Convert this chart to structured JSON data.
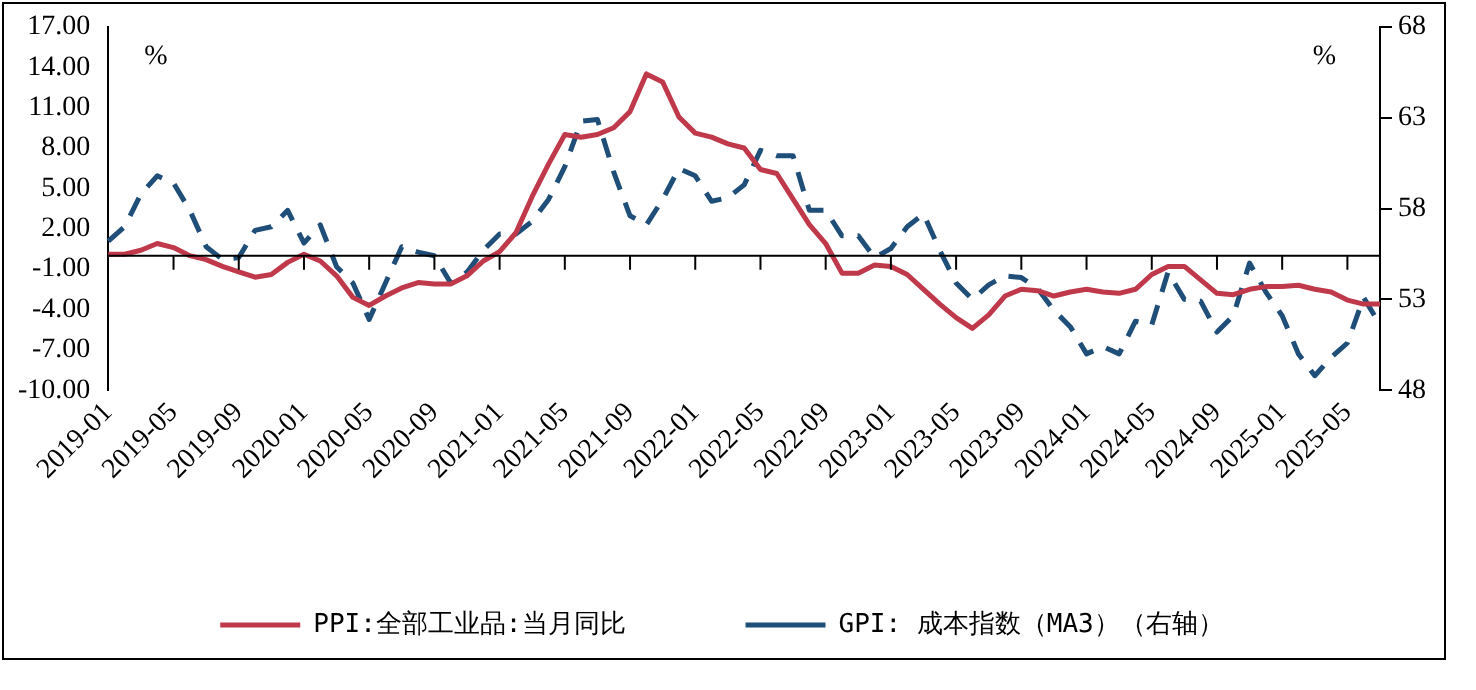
{
  "chart_data": {
    "type": "line",
    "categories": [
      "2019-01",
      null,
      null,
      null,
      "2019-05",
      null,
      null,
      null,
      "2019-09",
      null,
      null,
      null,
      "2020-01",
      null,
      null,
      null,
      "2020-05",
      null,
      null,
      null,
      "2020-09",
      null,
      null,
      null,
      "2021-01",
      null,
      null,
      null,
      "2021-05",
      null,
      null,
      null,
      "2021-09",
      null,
      null,
      null,
      "2022-01",
      null,
      null,
      null,
      "2022-05",
      null,
      null,
      null,
      "2022-09",
      null,
      null,
      null,
      "2023-01",
      null,
      null,
      null,
      "2023-05",
      null,
      null,
      null,
      "2023-09",
      null,
      null,
      null,
      "2024-01",
      null,
      null,
      null,
      "2024-05",
      null,
      null,
      null,
      "2024-09",
      null,
      null,
      null,
      "2025-01",
      null,
      null,
      null,
      "2025-05",
      null,
      null
    ],
    "series": [
      {
        "name": "PPI:全部工业品:当月同比",
        "color": "#c0394b",
        "line_style": "solid",
        "values": [
          0.1,
          0.1,
          0.4,
          0.9,
          0.6,
          0.0,
          -0.3,
          -0.8,
          -1.2,
          -1.6,
          -1.4,
          -0.5,
          0.1,
          -0.4,
          -1.5,
          -3.1,
          -3.7,
          -3.0,
          -2.4,
          -2.0,
          -2.1,
          -2.1,
          -1.5,
          -0.4,
          0.3,
          1.7,
          4.4,
          6.8,
          9.0,
          8.8,
          9.0,
          9.5,
          10.7,
          13.5,
          12.9,
          10.3,
          9.1,
          8.8,
          8.3,
          8.0,
          6.4,
          6.1,
          4.2,
          2.3,
          0.9,
          -1.3,
          -1.3,
          -0.7,
          -0.8,
          -1.4,
          -2.5,
          -3.6,
          -4.6,
          -5.4,
          -4.4,
          -3.0,
          -2.5,
          -2.6,
          -3.0,
          -2.7,
          -2.5,
          -2.7,
          -2.8,
          -2.5,
          -1.4,
          -0.8,
          -0.8,
          -1.8,
          -2.8,
          -2.9,
          -2.5,
          -2.3,
          -2.3,
          -2.2,
          -2.5,
          -2.7,
          -3.3,
          -3.6,
          -3.6
        ]
      },
      {
        "name": "GPI: 成本指数（MA3）（右轴）",
        "color": "#1f4e79",
        "line_style": "dashed",
        "axis": "y2",
        "values": [
          56.2,
          57.0,
          58.8,
          59.8,
          59.4,
          57.9,
          55.9,
          55.2,
          55.3,
          56.8,
          57.0,
          57.9,
          56.1,
          57.1,
          54.8,
          53.9,
          51.9,
          53.9,
          55.9,
          55.6,
          55.4,
          53.9,
          54.5,
          55.7,
          56.6,
          56.6,
          57.3,
          58.5,
          60.3,
          62.8,
          62.9,
          60.0,
          57.6,
          57.1,
          58.5,
          60.2,
          59.8,
          58.4,
          58.6,
          59.3,
          61.2,
          60.9,
          60.9,
          57.9,
          57.9,
          56.5,
          56.5,
          55.3,
          55.8,
          57.0,
          57.7,
          55.7,
          53.9,
          53.0,
          53.8,
          54.3,
          54.2,
          53.6,
          52.4,
          51.5,
          50.0,
          50.4,
          50.0,
          51.8,
          51.6,
          54.5,
          53.0,
          52.9,
          51.2,
          52.1,
          55.0,
          53.4,
          52.1,
          50.0,
          48.8,
          49.8,
          50.6,
          53.1,
          51.6
        ]
      }
    ],
    "ylim": [
      -10,
      17
    ],
    "yticks": [
      {
        "value": -10,
        "label": "-10.00"
      },
      {
        "value": -7,
        "label": "-7.00"
      },
      {
        "value": -4,
        "label": "-4.00"
      },
      {
        "value": -1,
        "label": "-1.00"
      },
      {
        "value": 2,
        "label": "2.00"
      },
      {
        "value": 5,
        "label": "5.00"
      },
      {
        "value": 8,
        "label": "8.00"
      },
      {
        "value": 11,
        "label": "11.00"
      },
      {
        "value": 14,
        "label": "14.00"
      },
      {
        "value": 17,
        "label": "17.00"
      }
    ],
    "y2lim": [
      48,
      68
    ],
    "y2ticks": [
      48,
      53,
      58,
      63,
      68
    ],
    "ylabel": "%",
    "y2label": "%",
    "legend": "bottom",
    "grid": false,
    "marker": "none"
  }
}
